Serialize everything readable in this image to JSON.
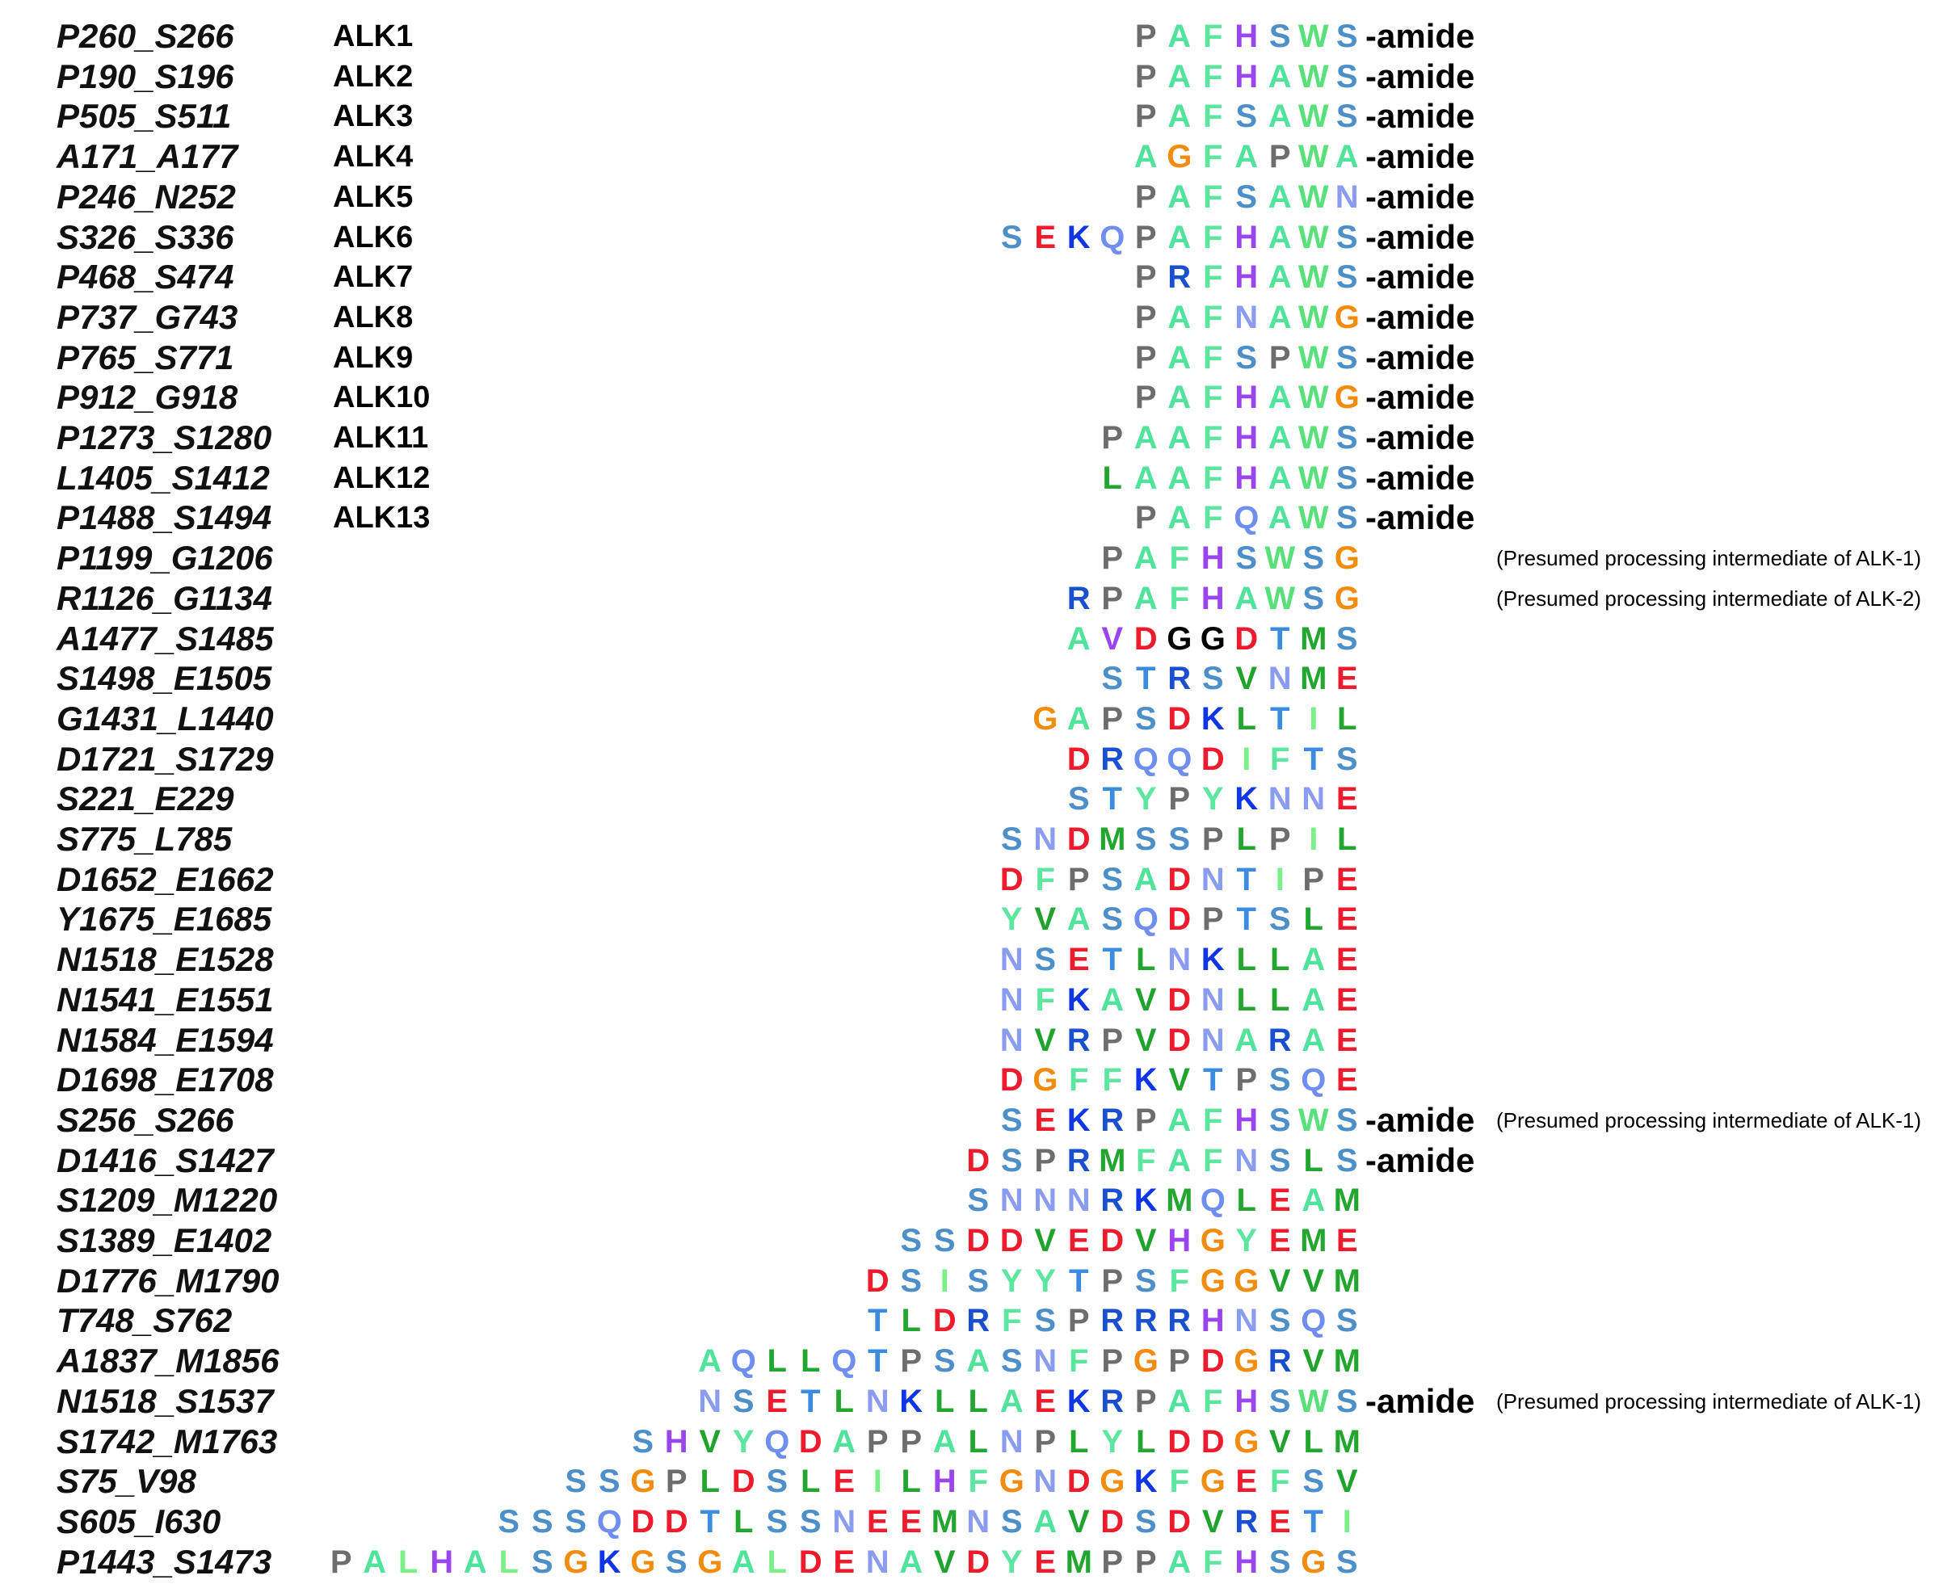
{
  "colors": {
    "A": "#4fe39b",
    "R": "#1a4fcf",
    "N": "#8a9cf0",
    "D": "#ee1b2c",
    "Q": "#6f8ff0",
    "E": "#ee1b2c",
    "G": "#f28c0f",
    "H": "#9a45f0",
    "I": "#7cf088",
    "L": "#23a62f",
    "K": "#0f36e6",
    "M": "#23a62f",
    "F": "#5ce6a0",
    "P": "#6d6d6d",
    "S": "#4d8fc9",
    "T": "#3b8ce0",
    "W": "#59e07a",
    "Y": "#5ce6a0",
    "V": "#1fa32c"
  },
  "special_colors": {
    "P1443_S1473": {
      "L": "#7cf088",
      "K": "#0f36e6"
    },
    "A1477_S1485": {
      "G": "#000000",
      "V": "#9a45f0"
    }
  },
  "rows": [
    {
      "id": "P260_S266",
      "alk": "ALK1",
      "seq": "PAFHSWS",
      "suffix": "-amide",
      "note": ""
    },
    {
      "id": "P190_S196",
      "alk": "ALK2",
      "seq": "PAFHAWS",
      "suffix": "-amide",
      "note": ""
    },
    {
      "id": "P505_S511",
      "alk": "ALK3",
      "seq": "PAFSAWS",
      "suffix": "-amide",
      "note": ""
    },
    {
      "id": "A171_A177",
      "alk": "ALK4",
      "seq": "AGFAPWA",
      "suffix": "-amide",
      "note": ""
    },
    {
      "id": "P246_N252",
      "alk": "ALK5",
      "seq": "PAFSAWN",
      "suffix": "-amide",
      "note": ""
    },
    {
      "id": "S326_S336",
      "alk": "ALK6",
      "seq": "SEKQPAFHAWS",
      "suffix": "-amide",
      "note": ""
    },
    {
      "id": "P468_S474",
      "alk": "ALK7",
      "seq": "PRFHAWS",
      "suffix": "-amide",
      "note": ""
    },
    {
      "id": "P737_G743",
      "alk": "ALK8",
      "seq": "PAFNAWG",
      "suffix": "-amide",
      "note": ""
    },
    {
      "id": "P765_S771",
      "alk": "ALK9",
      "seq": "PAFSPWS",
      "suffix": "-amide",
      "note": ""
    },
    {
      "id": "P912_G918",
      "alk": "ALK10",
      "seq": "PAFHAWG",
      "suffix": "-amide",
      "note": ""
    },
    {
      "id": "P1273_S1280",
      "alk": "ALK11",
      "seq": "PAAFHAWS",
      "suffix": "-amide",
      "note": ""
    },
    {
      "id": "L1405_S1412",
      "alk": "ALK12",
      "seq": "LAAFHAWS",
      "suffix": "-amide",
      "note": ""
    },
    {
      "id": "P1488_S1494",
      "alk": "ALK13",
      "seq": "PAFQAWS",
      "suffix": "-amide",
      "note": ""
    },
    {
      "id": "P1199_G1206",
      "alk": "",
      "seq": "PAFHSWSG",
      "suffix": "",
      "note": "(Presumed processing intermediate of ALK-1)"
    },
    {
      "id": "R1126_G1134",
      "alk": "",
      "seq": "RPAFHAWSG",
      "suffix": "",
      "note": "(Presumed processing intermediate of ALK-2)"
    },
    {
      "id": "A1477_S1485",
      "alk": "",
      "seq": "AVDGGDTMS",
      "suffix": "",
      "note": ""
    },
    {
      "id": "S1498_E1505",
      "alk": "",
      "seq": "STRSVNME",
      "suffix": "",
      "note": ""
    },
    {
      "id": "G1431_L1440",
      "alk": "",
      "seq": "GAPSDKLTIL",
      "suffix": "",
      "note": ""
    },
    {
      "id": "D1721_S1729",
      "alk": "",
      "seq": "DRQQDIFTS",
      "suffix": "",
      "note": ""
    },
    {
      "id": "S221_E229",
      "alk": "",
      "seq": "STYPYKNNE",
      "suffix": "",
      "note": ""
    },
    {
      "id": "S775_L785",
      "alk": "",
      "seq": "SNDMSSPLPIL",
      "suffix": "",
      "note": ""
    },
    {
      "id": "D1652_E1662",
      "alk": "",
      "seq": "DFPSADNTIPE",
      "suffix": "",
      "note": ""
    },
    {
      "id": "Y1675_E1685",
      "alk": "",
      "seq": "YVASQDPTSLE",
      "suffix": "",
      "note": ""
    },
    {
      "id": "N1518_E1528",
      "alk": "",
      "seq": "NSETLNKLLAE",
      "suffix": "",
      "note": ""
    },
    {
      "id": "N1541_E1551",
      "alk": "",
      "seq": "NFKAVDNLLAE",
      "suffix": "",
      "note": ""
    },
    {
      "id": "N1584_E1594",
      "alk": "",
      "seq": "NVRPVDNARAE",
      "suffix": "",
      "note": ""
    },
    {
      "id": "D1698_E1708",
      "alk": "",
      "seq": "DGFFKVTPSQE",
      "suffix": "",
      "note": ""
    },
    {
      "id": "S256_S266",
      "alk": "",
      "seq": "SEKRPAFHSWS",
      "suffix": "-amide",
      "note": "(Presumed processing intermediate of ALK-1)"
    },
    {
      "id": "D1416_S1427",
      "alk": "",
      "seq": "DSPRMFAFNSLS",
      "suffix": "-amide",
      "note": ""
    },
    {
      "id": "S1209_M1220",
      "alk": "",
      "seq": "SNNNRKMQLEAM",
      "suffix": "",
      "note": ""
    },
    {
      "id": "S1389_E1402",
      "alk": "",
      "seq": "SSDDVEDVHGYEME",
      "suffix": "",
      "note": ""
    },
    {
      "id": "D1776_M1790",
      "alk": "",
      "seq": "DSISYYTPSFGGVVM",
      "suffix": "",
      "note": ""
    },
    {
      "id": "T748_S762",
      "alk": "",
      "seq": "TLDRFSPRRRHNSQS",
      "suffix": "",
      "note": ""
    },
    {
      "id": "A1837_M1856",
      "alk": "",
      "seq": "AQLLQTPSASNFPGPDGRVM",
      "suffix": "",
      "note": ""
    },
    {
      "id": "N1518_S1537",
      "alk": "",
      "seq": "NSETLNKLLAEKRPAFHSWS",
      "suffix": "-amide",
      "note": "(Presumed processing intermediate of ALK-1)"
    },
    {
      "id": "S1742_M1763",
      "alk": "",
      "seq": "SHVYQDAPPALNPLYLDDGVLM",
      "suffix": "",
      "note": ""
    },
    {
      "id": "S75_V98",
      "alk": "",
      "seq": "SSGPLDSLEILHFGNDGKFGEFSV",
      "suffix": "",
      "note": ""
    },
    {
      "id": "S605_I630",
      "alk": "",
      "seq": "SSSQDDTLSSNEEMNSAVDSDVRETI",
      "suffix": "",
      "note": ""
    },
    {
      "id": "P1443_S1473",
      "alk": "",
      "seq": "PALHALSGKGSGALDENAVDYEMPPAFHSGS",
      "suffix": "",
      "note": ""
    }
  ]
}
